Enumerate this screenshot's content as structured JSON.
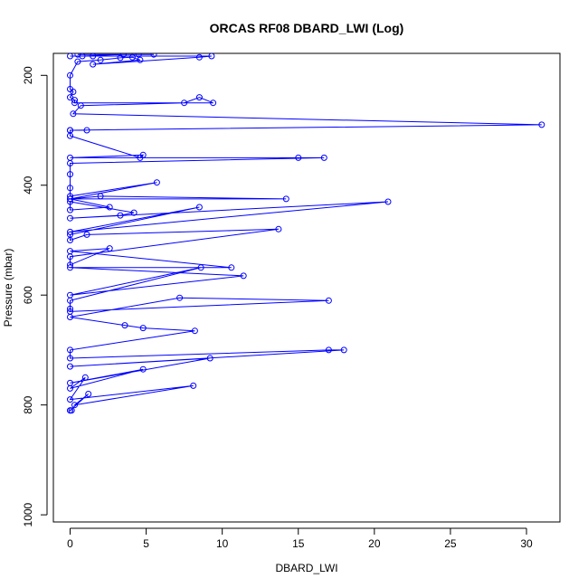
{
  "chart_data": {
    "type": "line",
    "title": "ORCAS RF08 DBARD_LWI (Log)",
    "xlabel": "DBARD_LWI",
    "ylabel": "Pressure (mbar)",
    "xlim": [
      -1.1,
      32.2
    ],
    "ylim": [
      1013,
      160
    ],
    "y_reversed": true,
    "grid": false,
    "legend": "none",
    "x_ticks": [
      0,
      5,
      10,
      15,
      20,
      25,
      30
    ],
    "y_ticks": [
      200,
      400,
      600,
      800,
      1000
    ],
    "series": [
      {
        "color": "#0000ff",
        "marker": "open-circle",
        "x": [
          0.5,
          4.5,
          3.5,
          5.5,
          3.5,
          0.8,
          1.5,
          0,
          9.3,
          8.5,
          1.5,
          4.6,
          4.1,
          3.3,
          2.0,
          0.5,
          0,
          0,
          0.2,
          0,
          0.3,
          0.3,
          9.4,
          8.5,
          7.5,
          0.7,
          0.2,
          31.0,
          0,
          1.1,
          0,
          0,
          4.6,
          4.8,
          0,
          15.0,
          16.7,
          0,
          0,
          0,
          0,
          5.7,
          0,
          14.2,
          2.0,
          0,
          2.6,
          0,
          0,
          4.2,
          3.3,
          0,
          20.9,
          0,
          8.5,
          0,
          0,
          1.1,
          13.7,
          0,
          0,
          2.6,
          0,
          10.6,
          0,
          11.4,
          0,
          8.6,
          0,
          0,
          0,
          17.0,
          7.2,
          0,
          3.6,
          4.8,
          8.2,
          0,
          0,
          17.0,
          18.0,
          0,
          9.2,
          0,
          4.8,
          0,
          1.0,
          0,
          8.1,
          0.3,
          1.2,
          0,
          0,
          0.1
        ],
        "y": [
          162,
          162,
          162,
          162,
          162,
          165,
          165,
          165,
          165,
          167,
          180,
          172,
          167,
          168,
          172,
          175,
          200,
          225,
          230,
          240,
          245,
          250,
          250,
          240,
          250,
          255,
          270,
          290,
          300,
          300,
          300,
          310,
          350,
          345,
          350,
          350,
          350,
          360,
          380,
          405,
          420,
          395,
          425,
          425,
          420,
          425,
          440,
          445,
          430,
          450,
          455,
          460,
          430,
          485,
          440,
          490,
          500,
          490,
          480,
          530,
          545,
          515,
          520,
          550,
          550,
          565,
          600,
          550,
          610,
          625,
          630,
          610,
          605,
          640,
          655,
          660,
          665,
          700,
          715,
          700,
          700,
          730,
          715,
          760,
          735,
          770,
          750,
          790,
          765,
          800,
          780,
          810,
          810,
          810
        ]
      }
    ]
  }
}
